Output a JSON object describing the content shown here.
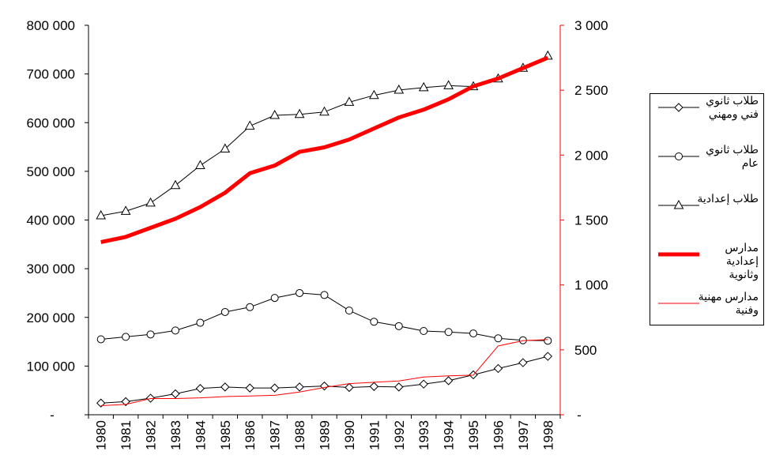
{
  "chart_data": {
    "type": "line",
    "title": "",
    "xlabel": "",
    "ylabel_left": "",
    "ylabel_right": "",
    "categories": [
      "1980",
      "1981",
      "1982",
      "1983",
      "1984",
      "1985",
      "1986",
      "1987",
      "1988",
      "1989",
      "1990",
      "1991",
      "1992",
      "1993",
      "1994",
      "1995",
      "1996",
      "1997",
      "1998"
    ],
    "ylim_left": [
      0,
      800000
    ],
    "ylim_right": [
      0,
      3000
    ],
    "y_ticks_left": [
      "-",
      "100 000",
      "200 000",
      "300 000",
      "400 000",
      "500 000",
      "600 000",
      "700 000",
      "800 000"
    ],
    "y_ticks_right": [
      "-",
      "500",
      "1 000",
      "1 500",
      "2 000",
      "2 500",
      "3 000"
    ],
    "series": [
      {
        "name": "طلاب ثانوي فني ومهني",
        "axis": "left",
        "color": "#000000",
        "marker": "diamond",
        "values": [
          24000,
          27000,
          34000,
          43000,
          54000,
          57000,
          55000,
          55000,
          57000,
          59000,
          56000,
          58000,
          57000,
          63000,
          70000,
          82000,
          95000,
          107000,
          120000
        ]
      },
      {
        "name": "طلاب ثانوي عام",
        "axis": "left",
        "color": "#000000",
        "marker": "circle",
        "values": [
          155000,
          160000,
          165000,
          173000,
          189000,
          211000,
          221000,
          240000,
          250000,
          246000,
          214000,
          191000,
          182000,
          172000,
          170000,
          167000,
          157000,
          153000,
          152000
        ]
      },
      {
        "name": "طلاب إعدادية",
        "axis": "left",
        "color": "#000000",
        "marker": "triangle",
        "values": [
          409000,
          418000,
          435000,
          471000,
          512000,
          546000,
          593000,
          615000,
          617000,
          622000,
          642000,
          656000,
          667000,
          672000,
          676000,
          674000,
          690000,
          712000,
          737000
        ]
      },
      {
        "name": "مدارس إعدادية وثانوية",
        "axis": "right",
        "color": "#ff0000",
        "width": 5,
        "marker": "none",
        "values": [
          1330,
          1370,
          1440,
          1510,
          1600,
          1710,
          1860,
          1920,
          2025,
          2060,
          2120,
          2205,
          2290,
          2350,
          2430,
          2530,
          2590,
          2670,
          2750
        ]
      },
      {
        "name": "مدارس مهنية وفنية",
        "axis": "right",
        "color": "#ff0000",
        "width": 1,
        "marker": "none",
        "values": [
          70,
          80,
          125,
          125,
          130,
          140,
          145,
          150,
          175,
          210,
          240,
          250,
          260,
          290,
          300,
          305,
          530,
          570,
          580
        ]
      }
    ],
    "legend_position": "right"
  }
}
